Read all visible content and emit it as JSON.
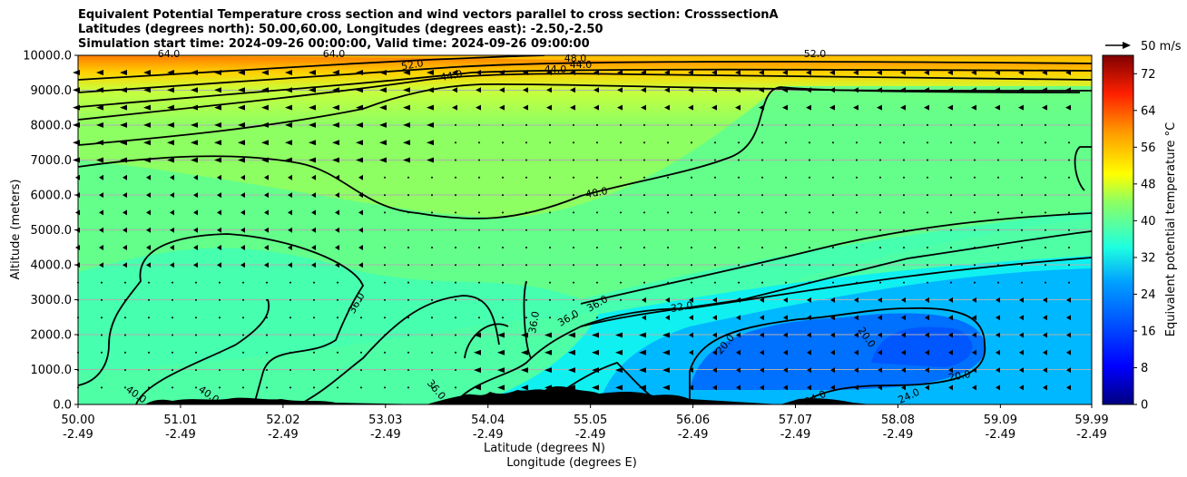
{
  "titles": [
    "Equivalent Potential Temperature cross section and wind vectors parallel to cross section: CrosssectionA",
    "Latitudes (degrees north): 50.00,60.00, Longitudes (degrees east): -2.50,-2.50",
    "Simulation start time: 2024-09-26 00:00:00, Valid time: 2024-09-26 09:00:00"
  ],
  "quiver_key": "50 m/s",
  "chart_data": {
    "type": "heatmap",
    "subtype": "filled contour cross section with wind vectors",
    "xlabel_1": "Latitude (degrees N)",
    "xlabel_2": "Longitude (degrees E)",
    "ylabel": "Altitude (meters)",
    "x_ticks": [
      {
        "lat": "50.00",
        "lon": "-2.49"
      },
      {
        "lat": "51.01",
        "lon": "-2.49"
      },
      {
        "lat": "52.02",
        "lon": "-2.49"
      },
      {
        "lat": "53.03",
        "lon": "-2.49"
      },
      {
        "lat": "54.04",
        "lon": "-2.49"
      },
      {
        "lat": "55.05",
        "lon": "-2.49"
      },
      {
        "lat": "56.06",
        "lon": "-2.49"
      },
      {
        "lat": "57.07",
        "lon": "-2.49"
      },
      {
        "lat": "58.08",
        "lon": "-2.49"
      },
      {
        "lat": "59.09",
        "lon": "-2.49"
      },
      {
        "lat": "59.99",
        "lon": "-2.49"
      }
    ],
    "xlim": [
      50.0,
      59.99
    ],
    "y_ticks": [
      "0.0",
      "1000.0",
      "2000.0",
      "3000.0",
      "4000.0",
      "5000.0",
      "6000.0",
      "7000.0",
      "8000.0",
      "9000.0",
      "10000.0"
    ],
    "ylim": [
      0,
      10000
    ],
    "grid": "horizontal",
    "colorbar": {
      "label": "Equivalent potential temperature °C",
      "ticks": [
        "0",
        "8",
        "16",
        "24",
        "32",
        "40",
        "48",
        "56",
        "64",
        "72"
      ],
      "range": [
        0,
        76
      ],
      "colormap": "jet"
    },
    "contour_labels": [
      "40.0",
      "40.0",
      "36.0",
      "36.0",
      "36.0",
      "36.0",
      "32.0",
      "20.0",
      "20.0",
      "20.0",
      "24.0",
      "24.0",
      "40.0",
      "44.0",
      "44.0",
      "44.0",
      "48.0",
      "52.0",
      "52.0",
      "64.0",
      "64.0",
      "36.0"
    ]
  }
}
